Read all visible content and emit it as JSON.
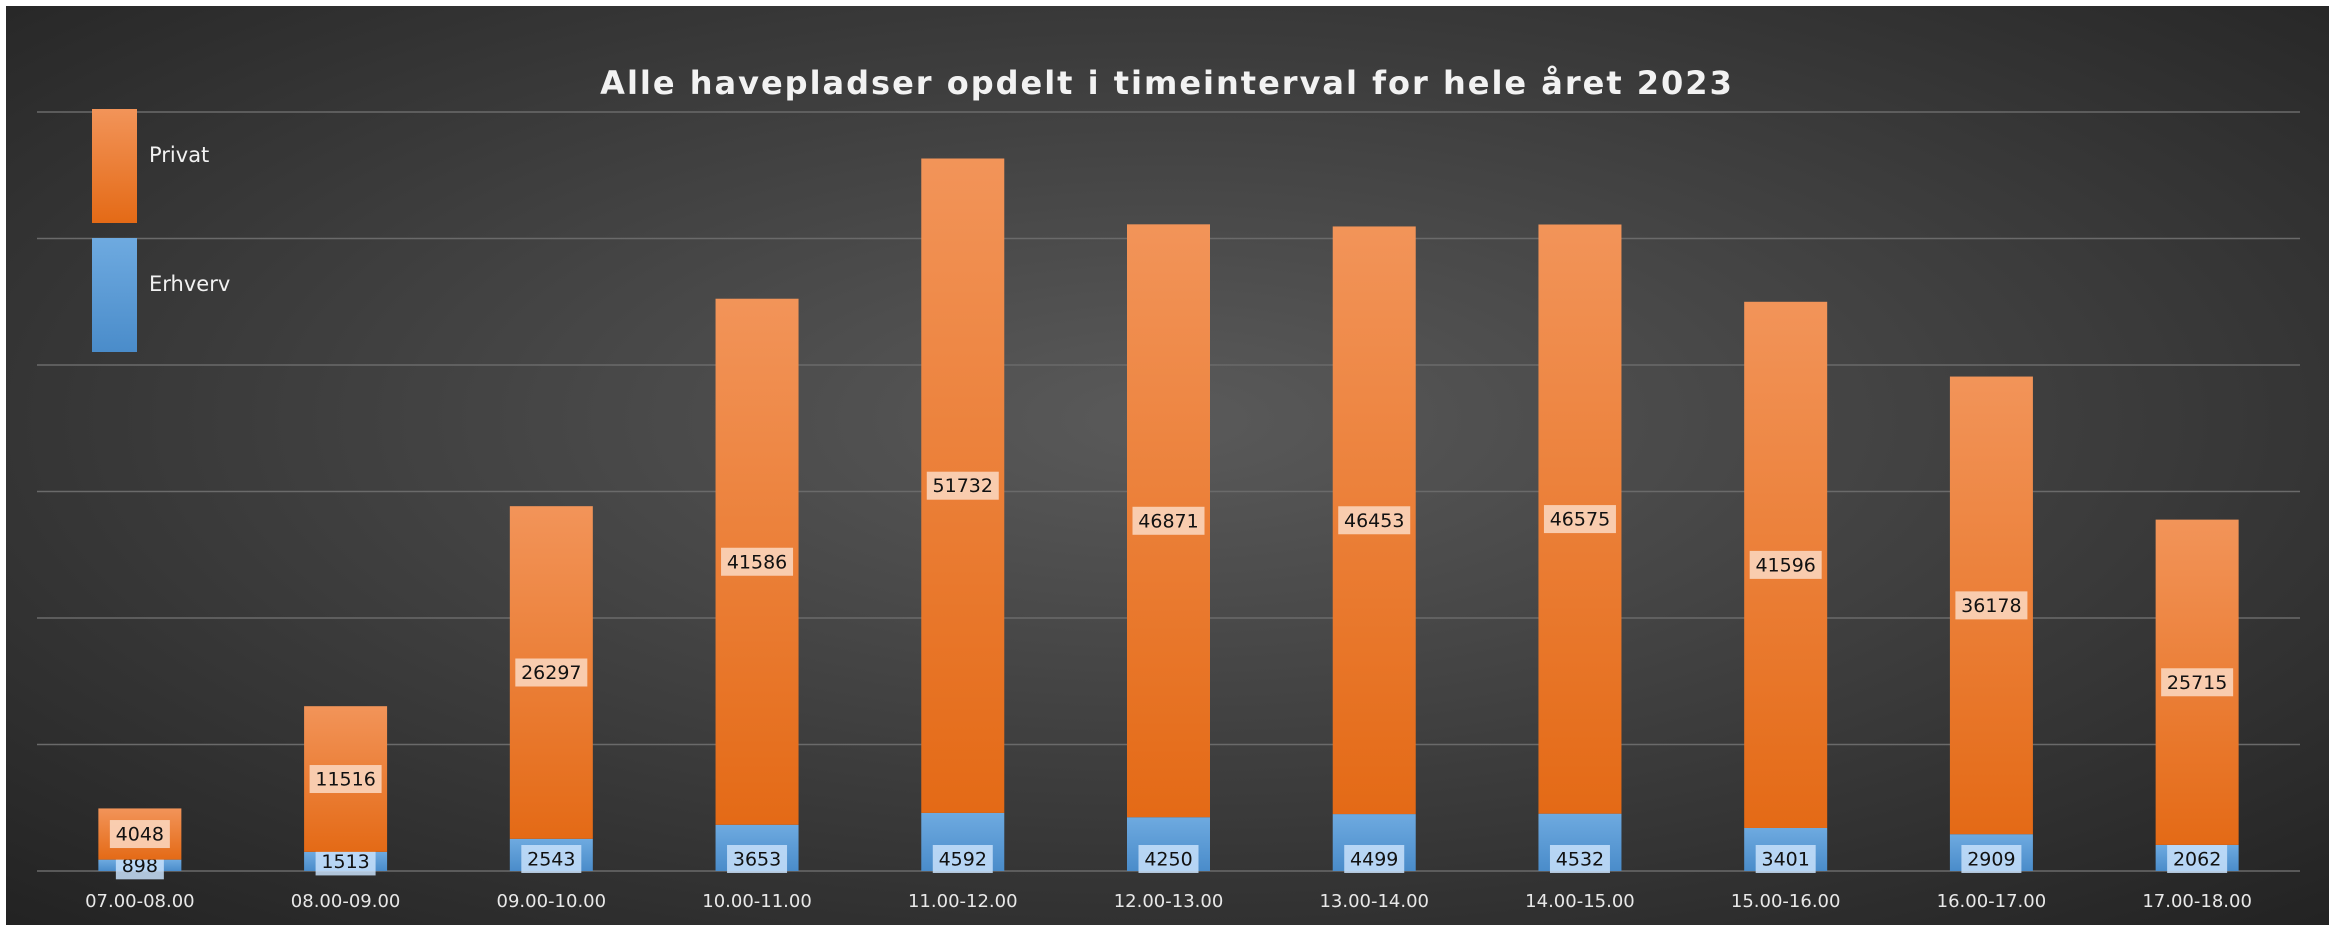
{
  "chart_data": {
    "type": "stacked_bar",
    "title": "Alle havepladser opdelt i timeinterval  for hele året 2023",
    "categories": [
      "07.00-08.00",
      "08.00-09.00",
      "09.00-10.00",
      "10.00-11.00",
      "11.00-12.00",
      "12.00-13.00",
      "13.00-14.00",
      "14.00-15.00",
      "15.00-16.00",
      "16.00-17.00",
      "17.00-18.00"
    ],
    "series": [
      {
        "name": "Erhverv",
        "color": "#5b9bd5",
        "values": [
          898,
          1513,
          2543,
          3653,
          4592,
          4250,
          4499,
          4532,
          3401,
          2909,
          2062
        ]
      },
      {
        "name": "Privat",
        "color": "#ed7d31",
        "values": [
          4048,
          11516,
          26297,
          41586,
          51732,
          46871,
          46453,
          46575,
          41596,
          36178,
          25715
        ]
      }
    ],
    "ylim": [
      0,
      60000
    ],
    "yticks": [
      0,
      10000,
      20000,
      30000,
      40000,
      50000,
      60000
    ],
    "grid": true,
    "legend": "top-left"
  }
}
